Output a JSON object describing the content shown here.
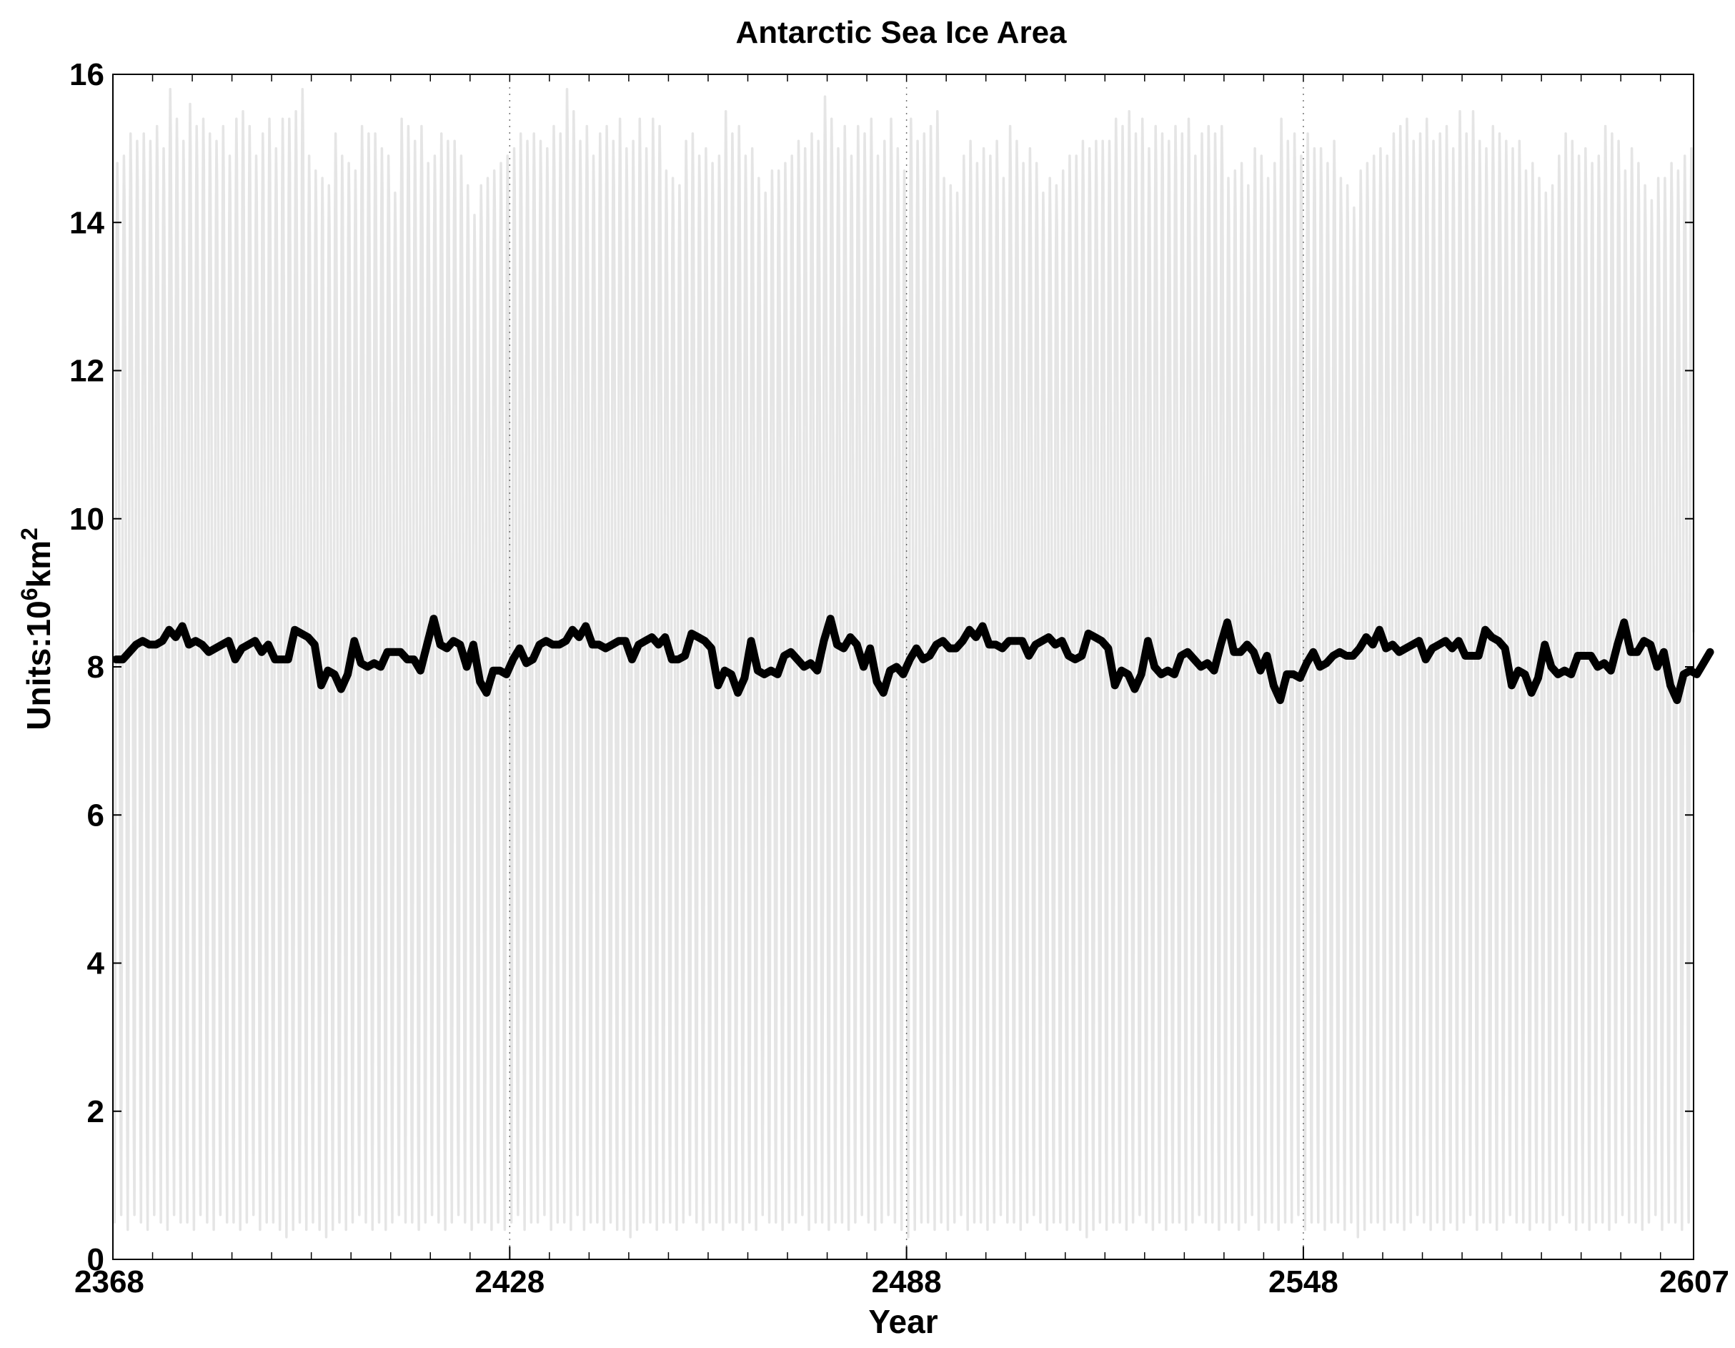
{
  "chart_data": {
    "type": "line",
    "title": "Antarctic Sea Ice Area",
    "xlabel": "Year",
    "ylabel": {
      "text": "Units:10",
      "sup1": "6",
      "mid": "km",
      "sup2": "2"
    },
    "xlim": [
      2368,
      2607
    ],
    "ylim": [
      0,
      16
    ],
    "xticks": [
      2368,
      2428,
      2488,
      2548,
      2607
    ],
    "yticks": [
      0,
      2,
      4,
      6,
      8,
      10,
      12,
      14,
      16
    ],
    "x_minor_step": 6,
    "grid": "dotted vertical at major x ticks",
    "colors": {
      "monthly": "#e5e5e5",
      "annual": "#000000",
      "axes": "#000000",
      "background": "#ffffff"
    },
    "series": [
      {
        "role": "monthly values",
        "style": "light grey thin line, seasonal cycle",
        "x_start": 2368,
        "step": 0.0833,
        "annual_max": [
          14.8,
          14.9,
          15.2,
          15.1,
          15.2,
          15.1,
          15.3,
          15.0,
          15.8,
          15.4,
          15.1,
          15.6,
          15.3,
          15.4,
          15.2,
          15.1,
          15.3,
          14.9,
          15.4,
          15.5,
          15.3,
          14.9,
          15.2,
          15.4,
          15.0,
          15.4,
          15.4,
          15.5,
          15.8,
          14.9,
          14.7,
          14.6,
          14.5,
          15.2,
          14.9,
          14.8,
          14.7,
          15.3,
          15.2,
          15.2,
          15.0,
          14.9,
          14.4,
          15.4,
          15.3,
          15.1,
          15.3,
          14.8,
          14.9,
          15.2,
          15.1,
          15.1,
          14.9,
          14.5,
          14.1,
          14.5,
          14.6,
          14.7,
          14.8,
          14.9,
          15.0,
          15.2,
          15.1,
          15.2,
          15.1,
          15.0,
          15.3,
          15.2,
          15.8,
          15.5,
          15.1,
          15.3,
          14.9,
          15.2,
          15.3,
          15.1,
          15.4,
          15.0,
          15.1,
          15.4,
          15.0,
          15.4,
          15.3,
          14.7,
          14.6,
          14.5,
          15.1,
          15.2,
          14.9,
          15.0,
          14.8,
          14.9,
          15.5,
          15.2,
          15.3,
          14.9,
          15.0,
          14.6,
          14.4,
          14.7,
          14.7,
          14.8,
          14.9,
          15.1,
          15.0,
          15.2,
          15.1,
          15.7,
          15.4,
          15.0,
          15.3,
          14.9,
          15.3,
          15.2,
          15.4,
          14.9,
          15.1,
          15.4,
          15.0,
          14.7,
          15.4,
          15.1,
          15.2,
          15.3,
          15.5,
          14.6,
          14.5,
          14.4,
          14.9,
          15.1,
          14.8,
          15.0,
          14.9,
          15.1,
          14.6,
          15.3,
          15.1,
          14.8,
          15.0,
          14.8,
          14.4,
          14.6,
          14.5,
          14.7,
          14.9,
          14.9,
          15.1,
          15.0,
          15.1,
          15.1,
          15.1,
          15.4,
          15.3,
          15.5,
          15.2,
          15.4,
          15.0,
          15.3,
          15.2,
          15.1,
          15.3,
          15.2,
          15.4,
          14.9,
          15.2,
          15.3,
          15.2,
          15.3,
          14.6,
          14.7,
          14.8,
          14.5,
          15.0,
          14.9,
          14.6,
          14.8,
          15.4,
          15.1,
          15.2,
          14.9,
          15.2,
          15.0,
          15.0,
          14.8,
          15.1,
          14.6,
          14.5,
          14.2,
          14.7,
          14.8,
          14.9,
          15.0,
          14.9,
          15.2,
          15.3,
          15.4,
          15.1,
          15.2,
          15.4,
          15.1,
          15.2,
          15.3,
          15.0,
          15.5,
          15.2,
          15.5,
          15.1,
          15.0,
          15.3,
          15.2,
          15.1,
          15.0,
          15.1,
          14.7,
          14.8,
          14.6,
          14.4,
          14.5,
          14.9,
          15.2,
          15.1,
          14.9,
          15.0,
          14.8,
          14.9,
          15.3,
          15.2,
          15.1,
          14.7,
          15.0,
          14.8,
          14.5,
          14.3,
          14.6,
          14.6,
          14.8,
          14.7,
          14.9,
          15.0,
          14.9,
          14.9
        ],
        "annual_min": [
          0.5,
          0.6,
          0.4,
          0.6,
          0.5,
          0.4,
          0.6,
          0.5,
          0.4,
          0.6,
          0.5,
          0.5,
          0.4,
          0.6,
          0.5,
          0.4,
          0.6,
          0.5,
          0.5,
          0.4,
          0.5,
          0.6,
          0.4,
          0.5,
          0.5,
          0.4,
          0.3,
          0.4,
          0.5,
          0.4,
          0.5,
          0.4,
          0.3,
          0.4,
          0.5,
          0.4,
          0.5,
          0.6,
          0.5,
          0.4,
          0.5,
          0.4,
          0.5,
          0.6,
          0.5,
          0.5,
          0.4,
          0.5,
          0.6,
          0.5,
          0.4,
          0.5,
          0.6,
          0.5,
          0.4,
          0.5,
          0.5,
          0.4,
          0.5,
          0.4,
          0.5,
          0.6,
          0.4,
          0.5,
          0.5,
          0.6,
          0.4,
          0.5,
          0.5,
          0.4,
          0.6,
          0.4,
          0.5,
          0.5,
          0.4,
          0.5,
          0.4,
          0.4,
          0.3,
          0.4,
          0.5,
          0.5,
          0.4,
          0.5,
          0.5,
          0.4,
          0.5,
          0.6,
          0.5,
          0.4,
          0.5,
          0.5,
          0.4,
          0.5,
          0.5,
          0.4,
          0.5,
          0.4,
          0.6,
          0.5,
          0.5,
          0.4,
          0.5,
          0.5,
          0.6,
          0.4,
          0.5,
          0.5,
          0.4,
          0.5,
          0.5,
          0.4,
          0.5,
          0.6,
          0.5,
          0.4,
          0.5,
          0.6,
          0.5,
          0.4,
          0.3,
          0.4,
          0.5,
          0.5,
          0.4,
          0.5,
          0.4,
          0.5,
          0.6,
          0.4,
          0.5,
          0.5,
          0.4,
          0.5,
          0.6,
          0.5,
          0.5,
          0.4,
          0.5,
          0.6,
          0.5,
          0.4,
          0.5,
          0.5,
          0.4,
          0.5,
          0.4,
          0.3,
          0.4,
          0.5,
          0.4,
          0.5,
          0.5,
          0.4,
          0.5,
          0.6,
          0.5,
          0.4,
          0.5,
          0.4,
          0.5,
          0.5,
          0.4,
          0.5,
          0.6,
          0.5,
          0.5,
          0.4,
          0.5,
          0.5,
          0.4,
          0.5,
          0.6,
          0.4,
          0.5,
          0.5,
          0.4,
          0.5,
          0.5,
          0.6,
          0.4,
          0.5,
          0.5,
          0.4,
          0.5,
          0.5,
          0.4,
          0.5,
          0.3,
          0.4,
          0.5,
          0.5,
          0.4,
          0.5,
          0.5,
          0.4,
          0.5,
          0.6,
          0.5,
          0.4,
          0.5,
          0.4,
          0.5,
          0.4,
          0.5,
          0.6,
          0.4,
          0.5,
          0.5,
          0.4,
          0.5,
          0.6,
          0.5,
          0.5,
          0.4,
          0.5,
          0.5,
          0.4,
          0.5,
          0.6,
          0.5,
          0.4,
          0.5,
          0.4,
          0.5,
          0.5,
          0.4,
          0.5,
          0.6,
          0.5,
          0.5,
          0.4,
          0.5,
          0.6,
          0.4,
          0.5,
          0.5,
          0.4,
          0.5,
          0.6,
          0.5,
          0.5
        ]
      },
      {
        "role": "annual mean",
        "style": "thick black line",
        "x_start": 2368,
        "step": 1,
        "values": [
          8.1,
          8.1,
          8.2,
          8.3,
          8.35,
          8.3,
          8.3,
          8.35,
          8.5,
          8.4,
          8.55,
          8.3,
          8.35,
          8.3,
          8.2,
          8.25,
          8.3,
          8.35,
          8.1,
          8.25,
          8.3,
          8.35,
          8.2,
          8.3,
          8.1,
          8.1,
          8.1,
          8.5,
          8.45,
          8.4,
          8.3,
          7.75,
          7.95,
          7.9,
          7.7,
          7.9,
          8.35,
          8.05,
          8.0,
          8.05,
          8.0,
          8.2,
          8.2,
          8.2,
          8.1,
          8.1,
          7.95,
          8.3,
          8.65,
          8.3,
          8.25,
          8.35,
          8.3,
          8.0,
          8.3,
          7.8,
          7.65,
          7.95,
          7.95,
          7.9,
          8.1,
          8.25,
          8.05,
          8.1,
          8.3,
          8.35,
          8.3,
          8.3,
          8.35,
          8.5,
          8.4,
          8.55,
          8.3,
          8.3,
          8.25,
          8.3,
          8.35,
          8.35,
          8.1,
          8.3,
          8.35,
          8.4,
          8.3,
          8.4,
          8.1,
          8.1,
          8.15,
          8.45,
          8.4,
          8.35,
          8.25,
          7.75,
          7.95,
          7.9,
          7.65,
          7.85,
          8.35,
          7.95,
          7.9,
          7.95,
          7.9,
          8.15,
          8.2,
          8.1,
          8.0,
          8.05,
          7.95,
          8.35,
          8.65,
          8.3,
          8.25,
          8.4,
          8.3,
          8.0,
          8.25,
          7.8,
          7.65,
          7.95,
          8.0,
          7.9,
          8.1,
          8.25,
          8.1,
          8.15,
          8.3,
          8.35,
          8.25,
          8.25,
          8.35,
          8.5,
          8.4,
          8.55,
          8.3,
          8.3,
          8.25,
          8.35,
          8.35,
          8.35,
          8.15,
          8.3,
          8.35,
          8.4,
          8.3,
          8.35,
          8.15,
          8.1,
          8.15,
          8.45,
          8.4,
          8.35,
          8.25,
          7.75,
          7.95,
          7.9,
          7.7,
          7.9,
          8.35,
          8.0,
          7.9,
          7.95,
          7.9,
          8.15,
          8.2,
          8.1,
          8.0,
          8.05,
          7.95,
          8.3,
          8.6,
          8.2,
          8.2,
          8.3,
          8.2,
          7.95,
          8.15,
          7.75,
          7.55,
          7.9,
          7.9,
          7.85,
          8.05,
          8.2,
          8.0,
          8.05,
          8.15,
          8.2,
          8.15,
          8.15,
          8.25,
          8.4,
          8.3,
          8.5,
          8.25,
          8.3,
          8.2,
          8.25,
          8.3,
          8.35,
          8.1,
          8.25,
          8.3,
          8.35,
          8.25,
          8.35,
          8.15,
          8.15,
          8.15,
          8.5,
          8.4,
          8.35,
          8.25,
          7.75,
          7.95,
          7.9,
          7.65,
          7.85,
          8.3,
          8.0,
          7.9,
          7.95,
          7.9,
          8.15,
          8.15,
          8.15,
          8.0,
          8.05,
          7.95,
          8.3,
          8.6,
          8.2,
          8.2,
          8.35,
          8.3,
          8.0,
          8.2,
          7.75,
          7.55,
          7.9,
          7.95,
          7.9,
          8.05,
          8.2
        ]
      }
    ]
  }
}
